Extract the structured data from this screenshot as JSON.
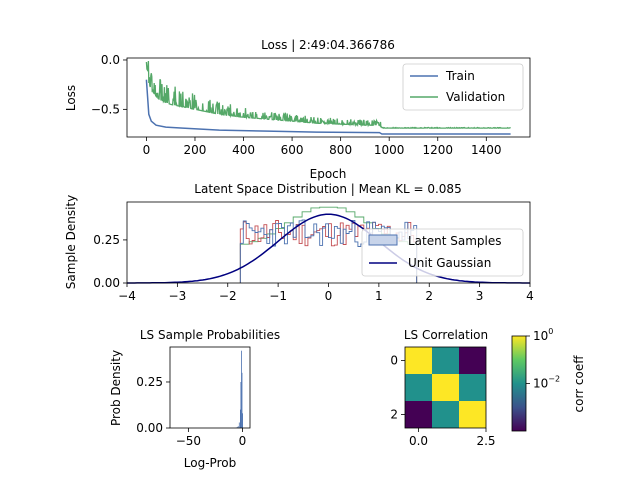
{
  "colors": {
    "train": "#4c72b0",
    "validation": "#55a868",
    "latent_hist_red": "#c44e52",
    "latent_hist_green": "#55a868",
    "latent_hist_blue": "#4c72b0",
    "gaussian": "#000080",
    "heatmap_high": "#fde725",
    "heatmap_mid": "#21918c",
    "heatmap_low": "#440154"
  },
  "chart_data": [
    {
      "id": "loss",
      "type": "line",
      "title": "Loss | 2:49:04.366786",
      "xlabel": "Epoch",
      "ylabel": "Loss",
      "xlim": [
        -80,
        1580
      ],
      "ylim": [
        -0.78,
        0.02
      ],
      "xticks": [
        "0",
        "200",
        "400",
        "600",
        "800",
        "1000",
        "1200",
        "1400"
      ],
      "xtick_values": [
        0,
        200,
        400,
        600,
        800,
        1000,
        1200,
        1400
      ],
      "yticks": [
        "0.0",
        "−0.5"
      ],
      "ytick_values": [
        0.0,
        -0.5
      ],
      "legend": "top-right",
      "series": [
        {
          "name": "Train",
          "x": [
            0,
            10,
            20,
            40,
            80,
            150,
            300,
            500,
            700,
            960,
            970,
            1200,
            1500
          ],
          "y": [
            -0.2,
            -0.55,
            -0.62,
            -0.66,
            -0.68,
            -0.69,
            -0.71,
            -0.72,
            -0.73,
            -0.735,
            -0.75,
            -0.75,
            -0.75
          ]
        },
        {
          "name": "Validation",
          "x": [
            0,
            5,
            20,
            50,
            100,
            200,
            300,
            400,
            500,
            600,
            700,
            800,
            900,
            960,
            970,
            1200,
            1500
          ],
          "y": [
            -0.02,
            -0.2,
            -0.3,
            -0.4,
            -0.45,
            -0.5,
            -0.55,
            -0.58,
            -0.6,
            -0.62,
            -0.64,
            -0.65,
            -0.66,
            -0.66,
            -0.69,
            -0.69,
            -0.69
          ]
        }
      ]
    },
    {
      "id": "latent",
      "type": "bar",
      "title": "Latent Space Distribution | Mean KL = 0.085",
      "xlabel": "",
      "ylabel": "Sample Density",
      "xlim": [
        -4,
        4
      ],
      "ylim": [
        0,
        0.47
      ],
      "xticks": [
        "−4",
        "−3",
        "−2",
        "−1",
        "0",
        "1",
        "2",
        "3",
        "4"
      ],
      "xtick_values": [
        -4,
        -3,
        -2,
        -1,
        0,
        1,
        2,
        3,
        4
      ],
      "yticks": [
        "0.00",
        "0.25"
      ],
      "ytick_values": [
        0.0,
        0.25
      ],
      "legend": "bottom-right",
      "series": [
        {
          "name": "Latent Samples",
          "range": [
            -1.75,
            1.75
          ],
          "mean_density": 0.29
        },
        {
          "name": "Unit Gaussian",
          "function": "normal",
          "mean": 0,
          "std": 1
        }
      ]
    },
    {
      "id": "ls_prob",
      "type": "bar",
      "title": "LS Sample Probabilities",
      "xlabel": "Log-Prob",
      "ylabel": "Prob Density",
      "xlim": [
        -67,
        7
      ],
      "ylim": [
        0,
        0.44
      ],
      "xticks": [
        "−50",
        "0"
      ],
      "xtick_values": [
        -50,
        0
      ],
      "yticks": [
        "0.00",
        "0.25"
      ],
      "ytick_values": [
        0.0,
        0.25
      ],
      "bins": [
        {
          "x": -6,
          "y": 0.002
        },
        {
          "x": -5,
          "y": 0.005
        },
        {
          "x": -4,
          "y": 0.01
        },
        {
          "x": -3,
          "y": 0.03
        },
        {
          "x": -2,
          "y": 0.1
        },
        {
          "x": -1.5,
          "y": 0.25
        },
        {
          "x": -1,
          "y": 0.42
        },
        {
          "x": -0.5,
          "y": 0.3
        },
        {
          "x": 0,
          "y": 0.08
        }
      ]
    },
    {
      "id": "ls_corr",
      "type": "heatmap",
      "title": "LS Correlation",
      "xticks": [
        "0.0",
        "2.5"
      ],
      "xtick_values": [
        0.0,
        2.5
      ],
      "yticks": [
        "0",
        "2"
      ],
      "ytick_values": [
        0,
        2
      ],
      "matrix": [
        [
          1.0,
          0.02,
          0.0001
        ],
        [
          0.02,
          1.0,
          0.02
        ],
        [
          0.0001,
          0.02,
          1.0
        ]
      ],
      "colorbar": {
        "label": "corr coeff",
        "scale": "log",
        "range": [
          0.0001,
          1
        ],
        "ticks": [
          "10",
          "10"
        ],
        "tick_exponents": [
          "0",
          "−2"
        ],
        "tick_values": [
          1,
          0.01
        ]
      }
    }
  ]
}
